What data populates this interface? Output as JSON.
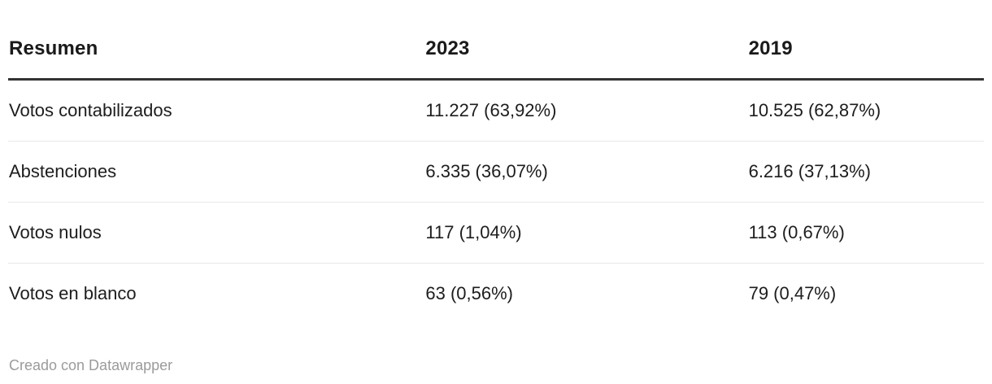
{
  "colors": {
    "background": "#ffffff",
    "header_text": "#1a1a1a",
    "body_text": "#1d1d1d",
    "header_rule": "#333333",
    "row_separator": "#e8e8e8",
    "footer_text": "#9b9b9b"
  },
  "table": {
    "columns": [
      "Resumen",
      "2023",
      "2019"
    ],
    "rows": [
      [
        "Votos contabilizados",
        "11.227 (63,92%)",
        "10.525 (62,87%)"
      ],
      [
        "Abstenciones",
        "6.335 (36,07%)",
        "6.216 (37,13%)"
      ],
      [
        "Votos nulos",
        "117 (1,04%)",
        "113 (0,67%)"
      ],
      [
        "Votos en blanco",
        "63 (0,56%)",
        "79 (0,47%)"
      ]
    ]
  },
  "chart_data": {
    "type": "table",
    "title": "Resumen",
    "columns": [
      "Resumen",
      "2023",
      "2019"
    ],
    "categories": [
      "Votos contabilizados",
      "Abstenciones",
      "Votos nulos",
      "Votos en blanco"
    ],
    "series": [
      {
        "name": "2023",
        "values": [
          11227,
          6335,
          117,
          63
        ],
        "percent": [
          63.92,
          36.07,
          1.04,
          0.56
        ]
      },
      {
        "name": "2019",
        "values": [
          10525,
          6216,
          113,
          79
        ],
        "percent": [
          62.87,
          37.13,
          0.67,
          0.47
        ]
      }
    ],
    "cells": [
      [
        "Votos contabilizados",
        "11.227 (63,92%)",
        "10.525 (62,87%)"
      ],
      [
        "Abstenciones",
        "6.335 (36,07%)",
        "6.216 (37,13%)"
      ],
      [
        "Votos nulos",
        "117 (1,04%)",
        "113 (0,67%)"
      ],
      [
        "Votos en blanco",
        "63 (0,56%)",
        "79 (0,47%)"
      ]
    ],
    "number_format": "es-ES (dot thousands, comma decimals)",
    "grid": "horizontal row separators only",
    "legend_position": "none"
  },
  "footer": {
    "credit": "Creado con Datawrapper"
  }
}
